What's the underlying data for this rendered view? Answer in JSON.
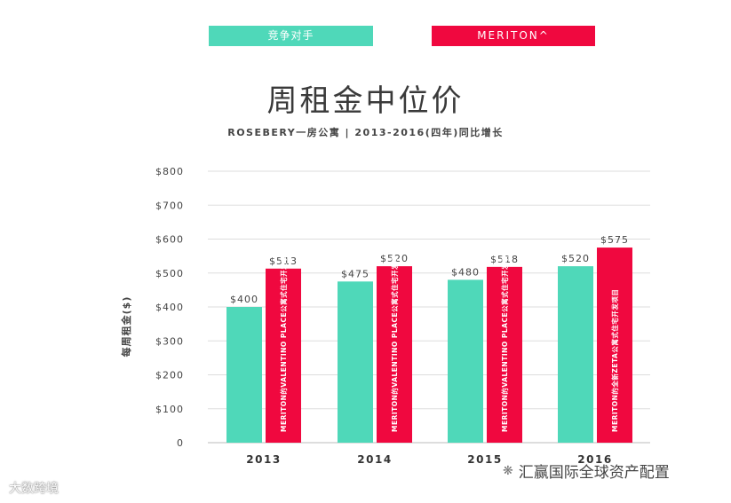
{
  "legend": {
    "competitor_label": "竞争对手",
    "meriton_label": "MERITON^"
  },
  "title": "周租金中位价",
  "subtitle": "ROSEBERY一房公寓 | 2013-2016(四年)同比增长",
  "watermark_left": "大数跨境",
  "watermark_right": "汇赢国际全球资产配置",
  "chart_data": {
    "type": "bar",
    "title": "周租金中位价",
    "subtitle": "ROSEBERY一房公寓 | 2013-2016(四年)同比增长",
    "xlabel": "",
    "ylabel": "每周租金($)",
    "ylim": [
      0,
      800
    ],
    "yticks": [
      0,
      100,
      200,
      300,
      400,
      500,
      600,
      700,
      800
    ],
    "ytick_labels": [
      "0",
      "$100",
      "$200",
      "$300",
      "$400",
      "$500",
      "$600",
      "$700",
      "$800"
    ],
    "grid": true,
    "categories": [
      "2013",
      "2014",
      "2015",
      "2016"
    ],
    "series": [
      {
        "name": "竞争对手",
        "color": "#4fd8b9",
        "values": [
          400,
          475,
          480,
          520
        ],
        "value_labels": [
          "$400",
          "$475",
          "$480",
          "$520"
        ]
      },
      {
        "name": "MERITON^",
        "color": "#f0083f",
        "values": [
          513,
          520,
          518,
          575
        ],
        "value_labels": [
          "$513",
          "$520",
          "$518",
          "$575"
        ],
        "bar_annotations": [
          "MERITON的VALENTINO PLACE公寓式住宅开发项目",
          "MERITON的VALENTINO PLACE公寓式住宅开发项目",
          "MERITON的VALENTINO PLACE公寓式住宅开发项目",
          "MERITON的全新ZETA公寓式住宅开发项目"
        ]
      }
    ]
  }
}
